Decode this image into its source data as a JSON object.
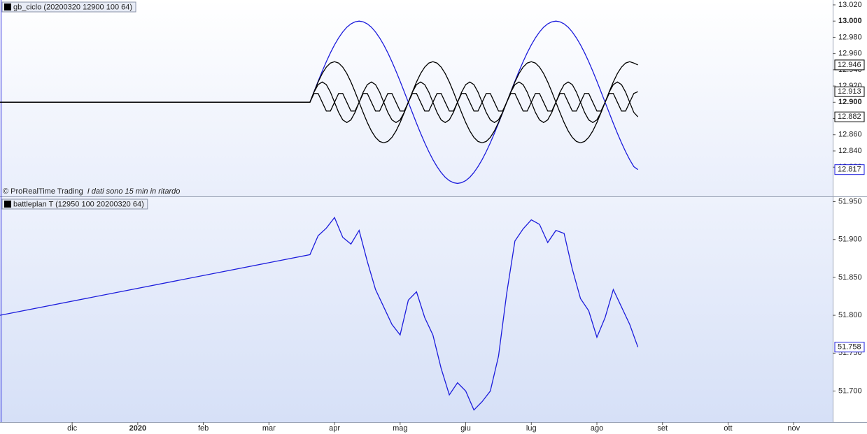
{
  "chart_data": [
    {
      "type": "line",
      "title": "gb_ciclo (20200320 12900 100 64)",
      "source": "© ProRealTime Trading",
      "note": "I dati sono 15 min in ritardo",
      "xlim": [
        -0.1,
        12.595
      ],
      "ylim": [
        12.784,
        13.026
      ],
      "yticks": [
        {
          "value": 13.02,
          "label": "13.020"
        },
        {
          "value": 13.0,
          "label": "13.000"
        },
        {
          "value": 12.98,
          "label": "12.980"
        },
        {
          "value": 12.96,
          "label": "12.960"
        },
        {
          "value": 12.94,
          "label": "12.940"
        },
        {
          "value": 12.92,
          "label": "12.920"
        },
        {
          "value": 12.9,
          "label": "12.900"
        },
        {
          "value": 12.88,
          "label": "12.880"
        },
        {
          "value": 12.86,
          "label": "12.860"
        },
        {
          "value": 12.84,
          "label": "12.840"
        },
        {
          "value": 12.82,
          "label": "12.820"
        }
      ],
      "x": [
        -0.1,
        4.625,
        4.6875,
        4.75,
        4.8125,
        4.875,
        4.9375,
        5,
        5.0625,
        5.125,
        5.1875,
        5.25,
        5.3125,
        5.375,
        5.4375,
        5.5,
        5.5625,
        5.625,
        5.6875,
        5.75,
        5.8125,
        5.875,
        5.9375,
        6,
        6.0625,
        6.125,
        6.1875,
        6.25,
        6.3125,
        6.375,
        6.4375,
        6.5,
        6.5625,
        6.625,
        6.6875,
        6.75,
        6.8125,
        6.875,
        6.9375,
        7,
        7.0625,
        7.125,
        7.1875,
        7.25,
        7.3125,
        7.375,
        7.4375,
        7.5,
        7.5625,
        7.625,
        7.6875,
        7.75,
        7.8125,
        7.875,
        7.9375,
        8,
        8.0625,
        8.125,
        8.1875,
        8.25,
        8.3125,
        8.375,
        8.4375,
        8.5,
        8.5625,
        8.625,
        8.6875,
        8.75,
        8.8125,
        8.875,
        8.9375,
        9,
        9.0625,
        9.125,
        9.1875,
        9.25,
        9.3125,
        9.375,
        9.4375,
        9.5,
        9.5625,
        9.625
      ],
      "series": [
        {
          "color": "#1c1cdc",
          "values": [
            12.9,
            12.9,
            12.913,
            12.9259,
            12.9383,
            12.95,
            12.9609,
            12.9707,
            12.9793,
            12.9866,
            12.9924,
            12.9966,
            12.9991,
            13,
            12.9991,
            12.9966,
            12.9924,
            12.9866,
            12.9793,
            12.9707,
            12.9609,
            12.95,
            12.9383,
            12.9259,
            12.913,
            12.9,
            12.887,
            12.8741,
            12.8617,
            12.85,
            12.8391,
            12.8293,
            12.8207,
            12.8134,
            12.8076,
            12.8034,
            12.8009,
            12.8,
            12.8009,
            12.8034,
            12.8076,
            12.8134,
            12.8207,
            12.8293,
            12.8391,
            12.85,
            12.8617,
            12.8741,
            12.887,
            12.9,
            12.913,
            12.9259,
            12.9383,
            12.95,
            12.9609,
            12.9707,
            12.9793,
            12.9866,
            12.9924,
            12.9966,
            12.9991,
            13,
            12.9991,
            12.9966,
            12.9924,
            12.9866,
            12.9793,
            12.9707,
            12.9609,
            12.95,
            12.9383,
            12.9259,
            12.913,
            12.9,
            12.887,
            12.8741,
            12.8617,
            12.85,
            12.8391,
            12.8293,
            12.8207,
            12.817
          ]
        },
        {
          "color": "#000000",
          "values": [
            12.9,
            12.9,
            12.9129,
            12.925,
            12.9354,
            12.9433,
            12.9483,
            12.95,
            12.9483,
            12.9433,
            12.9354,
            12.925,
            12.9129,
            12.9,
            12.8871,
            12.875,
            12.8646,
            12.8567,
            12.8517,
            12.85,
            12.8517,
            12.8567,
            12.8646,
            12.875,
            12.8871,
            12.9,
            12.9129,
            12.925,
            12.9354,
            12.9433,
            12.9483,
            12.95,
            12.9483,
            12.9433,
            12.9354,
            12.925,
            12.9129,
            12.9,
            12.8871,
            12.875,
            12.8646,
            12.8567,
            12.8517,
            12.85,
            12.8517,
            12.8567,
            12.8646,
            12.875,
            12.8871,
            12.9,
            12.9129,
            12.925,
            12.9354,
            12.9433,
            12.9483,
            12.95,
            12.9483,
            12.9433,
            12.9354,
            12.925,
            12.9129,
            12.9,
            12.8871,
            12.875,
            12.8646,
            12.8567,
            12.8517,
            12.85,
            12.8517,
            12.8567,
            12.8646,
            12.875,
            12.8871,
            12.9,
            12.9129,
            12.925,
            12.9354,
            12.9433,
            12.9483,
            12.95,
            12.9483,
            12.946
          ]
        },
        {
          "color": "#000000",
          "values": [
            12.9,
            12.9,
            12.9125,
            12.9217,
            12.925,
            12.9217,
            12.9125,
            12.9,
            12.8875,
            12.8783,
            12.875,
            12.8783,
            12.8875,
            12.9,
            12.9125,
            12.9217,
            12.925,
            12.9217,
            12.9125,
            12.9,
            12.8875,
            12.8783,
            12.875,
            12.8783,
            12.8875,
            12.9,
            12.9125,
            12.9217,
            12.925,
            12.9217,
            12.9125,
            12.9,
            12.8875,
            12.8783,
            12.875,
            12.8783,
            12.8875,
            12.9,
            12.9125,
            12.9217,
            12.925,
            12.9217,
            12.9125,
            12.9,
            12.8875,
            12.8783,
            12.875,
            12.8783,
            12.8875,
            12.9,
            12.9125,
            12.9217,
            12.925,
            12.9217,
            12.9125,
            12.9,
            12.8875,
            12.8783,
            12.875,
            12.8783,
            12.8875,
            12.9,
            12.9125,
            12.9217,
            12.925,
            12.9217,
            12.9125,
            12.9,
            12.8875,
            12.8783,
            12.875,
            12.8783,
            12.8875,
            12.9,
            12.9125,
            12.9217,
            12.925,
            12.9217,
            12.9125,
            12.9,
            12.8875,
            12.882
          ]
        },
        {
          "color": "#000000",
          "values": [
            12.9,
            12.9,
            12.9108,
            12.9108,
            12.9,
            12.8892,
            12.8892,
            12.9,
            12.9108,
            12.9108,
            12.9,
            12.8892,
            12.8892,
            12.9,
            12.9108,
            12.9108,
            12.9,
            12.8892,
            12.8892,
            12.9,
            12.9108,
            12.9108,
            12.9,
            12.8892,
            12.8892,
            12.9,
            12.9108,
            12.9108,
            12.9,
            12.8892,
            12.8892,
            12.9,
            12.9108,
            12.9108,
            12.9,
            12.8892,
            12.8892,
            12.9,
            12.9108,
            12.9108,
            12.9,
            12.8892,
            12.8892,
            12.9,
            12.9108,
            12.9108,
            12.9,
            12.8892,
            12.8892,
            12.9,
            12.9108,
            12.9108,
            12.9,
            12.8892,
            12.8892,
            12.9,
            12.9108,
            12.9108,
            12.9,
            12.8892,
            12.8892,
            12.9,
            12.9108,
            12.9108,
            12.9,
            12.8892,
            12.8892,
            12.9,
            12.9108,
            12.9108,
            12.9,
            12.8892,
            12.8892,
            12.9,
            12.9108,
            12.9108,
            12.9,
            12.8892,
            12.8892,
            12.9,
            12.9108,
            12.913
          ]
        }
      ]
    },
    {
      "type": "line",
      "title": "battleplan T (12950 100 20200320 64)",
      "xlim": [
        -0.1,
        12.595
      ],
      "ylim": [
        51.659,
        51.956
      ],
      "xticks": [
        {
          "value": 1,
          "label": "dic"
        },
        {
          "value": 2,
          "label": "2020"
        },
        {
          "value": 3,
          "label": "feb"
        },
        {
          "value": 4,
          "label": "mar"
        },
        {
          "value": 5,
          "label": "apr"
        },
        {
          "value": 6,
          "label": "mag"
        },
        {
          "value": 7,
          "label": "giu"
        },
        {
          "value": 8,
          "label": "lug"
        },
        {
          "value": 9,
          "label": "ago"
        },
        {
          "value": 10,
          "label": "set"
        },
        {
          "value": 11,
          "label": "ott"
        },
        {
          "value": 12,
          "label": "nov"
        }
      ],
      "yticks": [
        {
          "value": 51.95,
          "label": "51.950"
        },
        {
          "value": 51.9,
          "label": "51.900"
        },
        {
          "value": 51.85,
          "label": "51.850"
        },
        {
          "value": 51.8,
          "label": "51.800"
        },
        {
          "value": 51.75,
          "label": "51.750"
        },
        {
          "value": 51.7,
          "label": "51.700"
        }
      ],
      "x": [
        -0.1,
        4.625,
        4.75,
        4.875,
        5,
        5.125,
        5.25,
        5.375,
        5.5,
        5.625,
        5.75,
        5.875,
        6,
        6.125,
        6.25,
        6.375,
        6.5,
        6.625,
        6.75,
        6.875,
        7,
        7.125,
        7.25,
        7.375,
        7.5,
        7.625,
        7.75,
        7.875,
        8,
        8.125,
        8.25,
        8.375,
        8.5,
        8.625,
        8.75,
        8.875,
        9,
        9.125,
        9.25,
        9.375,
        9.5,
        9.625
      ],
      "series": [
        {
          "color": "#1c1cdc",
          "values": [
            51.8,
            51.88,
            51.905,
            51.915,
            51.929,
            51.903,
            51.894,
            51.912,
            51.871,
            51.834,
            51.811,
            51.788,
            51.774,
            51.82,
            51.831,
            51.797,
            51.774,
            51.73,
            51.695,
            51.711,
            51.7,
            51.675,
            51.686,
            51.7,
            51.746,
            51.829,
            51.898,
            51.914,
            51.926,
            51.92,
            51.896,
            51.912,
            51.908,
            51.861,
            51.822,
            51.806,
            51.771,
            51.797,
            51.834,
            51.811,
            51.788,
            51.758
          ]
        }
      ]
    }
  ]
}
